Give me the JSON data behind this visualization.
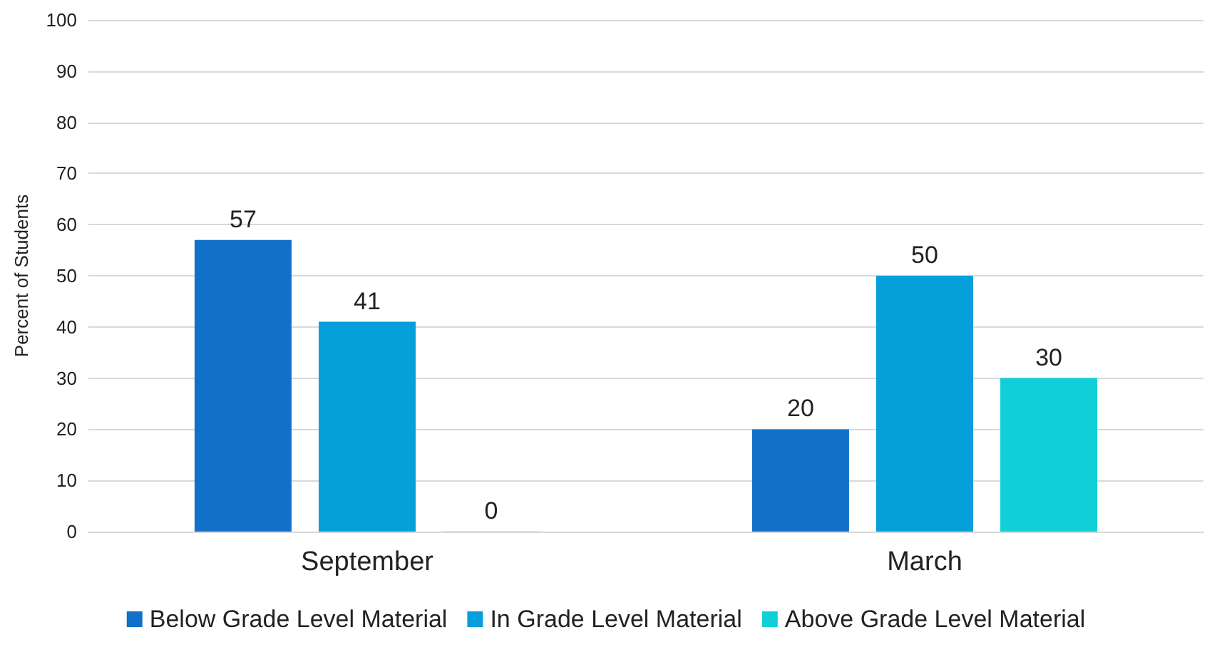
{
  "chart_data": {
    "type": "bar",
    "ylabel": "Percent of Students",
    "categories": [
      "September",
      "March"
    ],
    "series": [
      {
        "name": "Below Grade Level Material",
        "color": "#1170c8",
        "values": [
          57,
          20
        ],
        "value_labels": [
          "57",
          "20"
        ]
      },
      {
        "name": "In Grade Level Material",
        "color": "#059fda",
        "values": [
          41,
          50
        ],
        "value_labels": [
          "41",
          "50"
        ]
      },
      {
        "name": "Above Grade Level Material",
        "color": "#10cfd8",
        "values": [
          0,
          30
        ],
        "value_labels": [
          "0",
          "30"
        ]
      }
    ],
    "ylim": [
      0,
      100
    ],
    "yticks": [
      0,
      10,
      20,
      30,
      40,
      50,
      60,
      70,
      80,
      90,
      100
    ],
    "grid": "y",
    "legend": "bottom"
  }
}
